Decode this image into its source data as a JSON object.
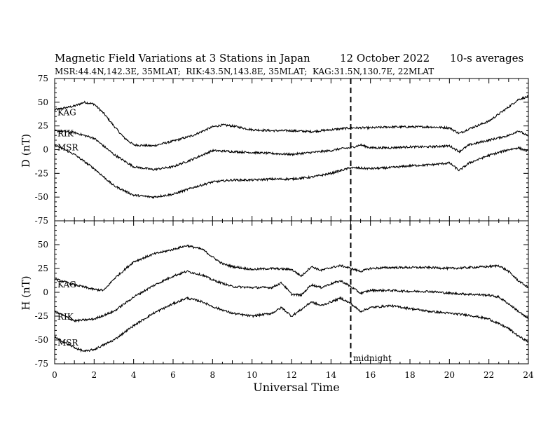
{
  "header": {
    "title": "Magnetic Field Variations at 3 Stations in Japan",
    "date": "12 October 2022",
    "averaging": "10-s averages",
    "subtitle": "MSR:44.4N,142.3E, 35MLAT;  RIK:43.5N,143.8E, 35MLAT;  KAG:31.5N,130.7E, 22MLAT"
  },
  "chart_data": [
    {
      "type": "line",
      "panel": "top",
      "ylabel": "D (nT)",
      "xlabel": "",
      "xlim": [
        0,
        24
      ],
      "ylim": [
        -75,
        75
      ],
      "yticks": [
        75,
        50,
        25,
        0,
        -25,
        -50,
        -75
      ],
      "series": [
        {
          "name": "KAG",
          "x": [
            0,
            1,
            1.5,
            2,
            2.5,
            3,
            3.5,
            4,
            5,
            6,
            7,
            8,
            8.5,
            9,
            10,
            11,
            12,
            13,
            14,
            15,
            16,
            17,
            18,
            19,
            20,
            20.5,
            21,
            22,
            23,
            23.5,
            24
          ],
          "y": [
            42,
            46,
            50,
            48,
            38,
            25,
            13,
            5,
            4,
            9,
            15,
            24,
            26,
            25,
            21,
            20,
            20,
            19,
            21,
            23,
            23,
            24,
            24,
            24,
            23,
            17,
            22,
            30,
            45,
            53,
            56
          ]
        },
        {
          "name": "RIK",
          "x": [
            0,
            1,
            2,
            3,
            4,
            5,
            6,
            7,
            8,
            9,
            10,
            11,
            12,
            13,
            14,
            14.5,
            15,
            15.5,
            16,
            17,
            18,
            19,
            20,
            20.5,
            21,
            22,
            23,
            23.5,
            24
          ],
          "y": [
            20,
            18,
            12,
            -5,
            -18,
            -21,
            -18,
            -10,
            -1,
            -2,
            -3,
            -4,
            -5,
            -3,
            -1,
            1,
            2,
            5,
            2,
            2,
            3,
            3,
            4,
            -2,
            5,
            10,
            15,
            20,
            14
          ]
        },
        {
          "name": "MSR",
          "x": [
            0,
            1,
            2,
            3,
            4,
            5,
            6,
            7,
            8,
            9,
            10,
            11,
            12,
            13,
            14,
            15,
            16,
            17,
            18,
            19,
            20,
            20.5,
            21,
            22,
            23,
            23.5,
            24
          ],
          "y": [
            5,
            -5,
            -20,
            -38,
            -48,
            -50,
            -47,
            -40,
            -34,
            -32,
            -32,
            -31,
            -31,
            -29,
            -25,
            -19,
            -20,
            -19,
            -17,
            -16,
            -14,
            -22,
            -14,
            -6,
            0,
            2,
            -2
          ]
        }
      ]
    },
    {
      "type": "line",
      "panel": "bottom",
      "ylabel": "H (nT)",
      "xlabel": "Universal Time",
      "xlim": [
        0,
        24
      ],
      "ylim": [
        -75,
        75
      ],
      "xticks": [
        0,
        2,
        4,
        6,
        8,
        10,
        12,
        14,
        16,
        18,
        20,
        22,
        24
      ],
      "yticks": [
        75,
        50,
        25,
        0,
        -25,
        -50,
        -75
      ],
      "series": [
        {
          "name": "KAG",
          "x": [
            0,
            1,
            2,
            2.5,
            3,
            4,
            5,
            6,
            6.7,
            7.5,
            8,
            8.5,
            9,
            10,
            11,
            12,
            12.5,
            13,
            13.5,
            14,
            14.5,
            15,
            15.5,
            16,
            17,
            18,
            19,
            20,
            21,
            22,
            22.5,
            23,
            23.5,
            24
          ],
          "y": [
            14,
            8,
            3,
            2,
            14,
            32,
            40,
            45,
            49,
            45,
            37,
            30,
            27,
            24,
            25,
            24,
            17,
            27,
            23,
            26,
            28,
            25,
            22,
            25,
            26,
            26,
            26,
            25,
            26,
            27,
            28,
            22,
            12,
            5
          ]
        },
        {
          "name": "RIK",
          "x": [
            0,
            1,
            2,
            3,
            4,
            5,
            6,
            6.7,
            7.5,
            8,
            9,
            10,
            11,
            11.5,
            12,
            12.5,
            13,
            13.5,
            14,
            14.5,
            15,
            15.5,
            16,
            17,
            18,
            19,
            20,
            21,
            22,
            22.5,
            23,
            23.5,
            24
          ],
          "y": [
            -20,
            -30,
            -28,
            -20,
            -5,
            7,
            17,
            22,
            18,
            13,
            6,
            5,
            5,
            10,
            -2,
            -3,
            8,
            5,
            9,
            12,
            6,
            -1,
            2,
            2,
            1,
            1,
            -1,
            -2,
            -3,
            -5,
            -12,
            -20,
            -28
          ]
        },
        {
          "name": "MSR",
          "x": [
            0,
            1,
            1.5,
            2,
            3,
            4,
            5,
            6,
            6.7,
            7.5,
            8,
            9,
            10,
            11,
            11.5,
            12,
            12.5,
            13,
            13.5,
            14,
            14.5,
            15,
            15.5,
            16,
            17,
            18,
            19,
            20,
            21,
            22,
            22.5,
            23,
            23.5,
            24
          ],
          "y": [
            -47,
            -58,
            -62,
            -60,
            -50,
            -35,
            -22,
            -12,
            -6,
            -10,
            -15,
            -22,
            -25,
            -22,
            -16,
            -25,
            -18,
            -10,
            -14,
            -10,
            -6,
            -12,
            -20,
            -16,
            -14,
            -17,
            -20,
            -22,
            -24,
            -28,
            -33,
            -38,
            -46,
            -52
          ]
        }
      ]
    }
  ],
  "annotation": {
    "label": "midnight",
    "x": 15
  }
}
